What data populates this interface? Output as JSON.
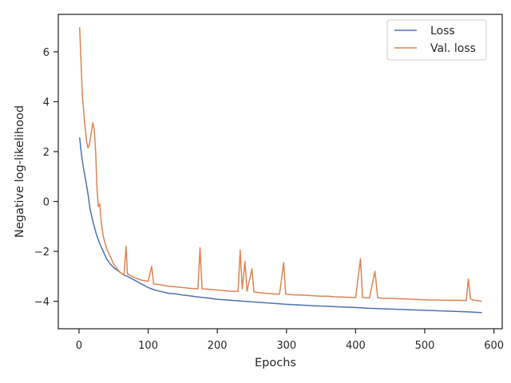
{
  "chart_data": {
    "type": "line",
    "xlabel": "Epochs",
    "ylabel": "Negative log-likelihood",
    "xlim": [
      -30,
      612
    ],
    "ylim": [
      -5.1,
      7.5
    ],
    "xticks": [
      0,
      100,
      200,
      300,
      400,
      500,
      600
    ],
    "yticks": [
      -4,
      -2,
      0,
      2,
      4,
      6
    ],
    "grid": false,
    "legend": "top-right",
    "series": [
      {
        "name": "Loss",
        "color": "#4c72b0",
        "points": [
          [
            1,
            2.55
          ],
          [
            3,
            2.0
          ],
          [
            6,
            1.4
          ],
          [
            10,
            0.8
          ],
          [
            13,
            0.3
          ],
          [
            16,
            -0.3
          ],
          [
            20,
            -0.8
          ],
          [
            25,
            -1.3
          ],
          [
            30,
            -1.7
          ],
          [
            35,
            -2.0
          ],
          [
            40,
            -2.3
          ],
          [
            45,
            -2.5
          ],
          [
            50,
            -2.65
          ],
          [
            55,
            -2.75
          ],
          [
            60,
            -2.85
          ],
          [
            65,
            -2.95
          ],
          [
            70,
            -3.0
          ],
          [
            80,
            -3.15
          ],
          [
            90,
            -3.3
          ],
          [
            100,
            -3.45
          ],
          [
            110,
            -3.55
          ],
          [
            120,
            -3.62
          ],
          [
            130,
            -3.68
          ],
          [
            140,
            -3.7
          ],
          [
            150,
            -3.75
          ],
          [
            160,
            -3.78
          ],
          [
            170,
            -3.82
          ],
          [
            180,
            -3.85
          ],
          [
            190,
            -3.88
          ],
          [
            200,
            -3.92
          ],
          [
            210,
            -3.94
          ],
          [
            220,
            -3.96
          ],
          [
            230,
            -3.98
          ],
          [
            240,
            -4.0
          ],
          [
            250,
            -4.02
          ],
          [
            260,
            -4.04
          ],
          [
            270,
            -4.06
          ],
          [
            280,
            -4.08
          ],
          [
            290,
            -4.1
          ],
          [
            300,
            -4.12
          ],
          [
            320,
            -4.15
          ],
          [
            340,
            -4.18
          ],
          [
            360,
            -4.2
          ],
          [
            380,
            -4.23
          ],
          [
            400,
            -4.25
          ],
          [
            420,
            -4.28
          ],
          [
            440,
            -4.3
          ],
          [
            460,
            -4.32
          ],
          [
            480,
            -4.34
          ],
          [
            500,
            -4.36
          ],
          [
            520,
            -4.38
          ],
          [
            540,
            -4.4
          ],
          [
            560,
            -4.42
          ],
          [
            582,
            -4.45
          ]
        ]
      },
      {
        "name": "Val. loss",
        "color": "#dd8452",
        "points": [
          [
            1,
            6.97
          ],
          [
            3,
            5.5
          ],
          [
            5,
            4.2
          ],
          [
            8,
            3.2
          ],
          [
            11,
            2.4
          ],
          [
            13,
            2.15
          ],
          [
            15,
            2.3
          ],
          [
            18,
            2.8
          ],
          [
            20,
            3.15
          ],
          [
            22,
            2.9
          ],
          [
            24,
            2.0
          ],
          [
            26,
            0.5
          ],
          [
            28,
            -0.2
          ],
          [
            30,
            -0.1
          ],
          [
            32,
            -0.8
          ],
          [
            35,
            -1.4
          ],
          [
            40,
            -1.9
          ],
          [
            45,
            -2.2
          ],
          [
            50,
            -2.5
          ],
          [
            55,
            -2.7
          ],
          [
            60,
            -2.85
          ],
          [
            65,
            -2.95
          ],
          [
            68,
            -1.8
          ],
          [
            70,
            -2.9
          ],
          [
            80,
            -3.05
          ],
          [
            90,
            -3.15
          ],
          [
            100,
            -3.2
          ],
          [
            105,
            -2.6
          ],
          [
            108,
            -3.3
          ],
          [
            120,
            -3.35
          ],
          [
            130,
            -3.4
          ],
          [
            140,
            -3.42
          ],
          [
            150,
            -3.45
          ],
          [
            160,
            -3.48
          ],
          [
            172,
            -3.5
          ],
          [
            175,
            -1.85
          ],
          [
            178,
            -3.5
          ],
          [
            190,
            -3.52
          ],
          [
            200,
            -3.55
          ],
          [
            210,
            -3.57
          ],
          [
            220,
            -3.6
          ],
          [
            230,
            -3.6
          ],
          [
            233,
            -1.95
          ],
          [
            236,
            -3.5
          ],
          [
            240,
            -2.4
          ],
          [
            243,
            -3.6
          ],
          [
            250,
            -2.7
          ],
          [
            253,
            -3.62
          ],
          [
            260,
            -3.65
          ],
          [
            270,
            -3.68
          ],
          [
            280,
            -3.7
          ],
          [
            290,
            -3.72
          ],
          [
            296,
            -2.45
          ],
          [
            299,
            -3.72
          ],
          [
            310,
            -3.74
          ],
          [
            320,
            -3.75
          ],
          [
            330,
            -3.76
          ],
          [
            340,
            -3.78
          ],
          [
            350,
            -3.8
          ],
          [
            360,
            -3.8
          ],
          [
            370,
            -3.82
          ],
          [
            380,
            -3.83
          ],
          [
            390,
            -3.84
          ],
          [
            400,
            -3.85
          ],
          [
            407,
            -2.3
          ],
          [
            410,
            -3.85
          ],
          [
            420,
            -3.86
          ],
          [
            428,
            -2.8
          ],
          [
            432,
            -3.86
          ],
          [
            440,
            -3.88
          ],
          [
            450,
            -3.88
          ],
          [
            460,
            -3.9
          ],
          [
            470,
            -3.9
          ],
          [
            480,
            -3.92
          ],
          [
            490,
            -3.93
          ],
          [
            500,
            -3.94
          ],
          [
            510,
            -3.95
          ],
          [
            520,
            -3.95
          ],
          [
            530,
            -3.96
          ],
          [
            540,
            -3.96
          ],
          [
            550,
            -3.96
          ],
          [
            560,
            -3.97
          ],
          [
            563,
            -3.1
          ],
          [
            566,
            -3.9
          ],
          [
            570,
            -3.95
          ],
          [
            582,
            -4.0
          ]
        ]
      }
    ]
  }
}
